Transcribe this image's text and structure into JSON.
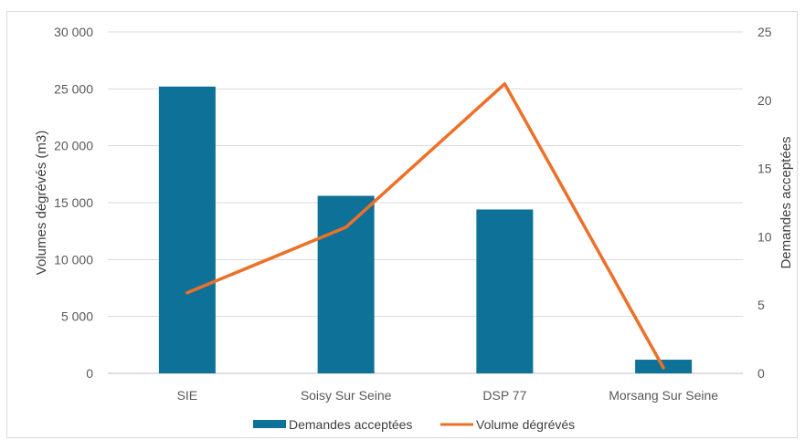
{
  "chart_data": {
    "type": "bar",
    "categories": [
      "SIE",
      "Soisy Sur Seine",
      "DSP 77",
      "Morsang Sur Seine"
    ],
    "series": [
      {
        "name": "Demandes acceptées",
        "type": "bar",
        "axis": "left",
        "color": "#0e7198",
        "values": [
          25200,
          15600,
          14400,
          1200
        ]
      },
      {
        "name": "Volume dégrévés",
        "type": "line",
        "axis": "right",
        "color": "#ed7028",
        "values": [
          5.9,
          10.7,
          21.2,
          0.4
        ]
      }
    ],
    "ylabel": "Volumes dégrévés (m3)",
    "ylim": [
      0,
      30000
    ],
    "yticks": [
      "0",
      "5 000",
      "10 000",
      "15 000",
      "20 000",
      "25 000",
      "30 000"
    ],
    "y2label": "Demandes acceptées",
    "y2lim": [
      0,
      25
    ],
    "y2ticks": [
      "0",
      "5",
      "10",
      "15",
      "20",
      "25"
    ],
    "grid": true,
    "legend_position": "bottom"
  }
}
